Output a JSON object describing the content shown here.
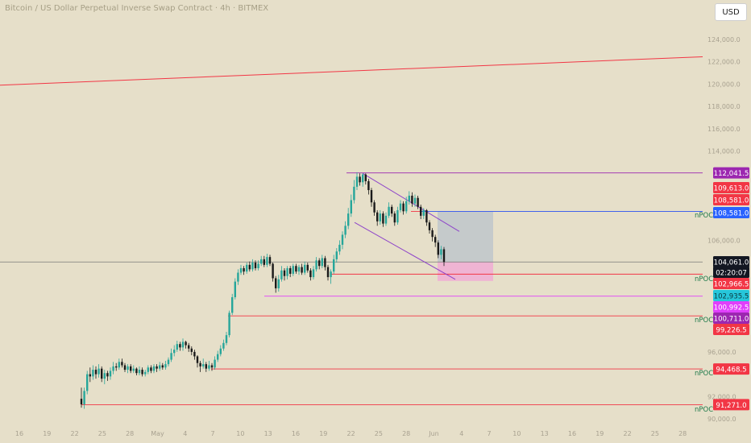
{
  "header": {
    "title": "Bitcoin / US Dollar Perpetual Inverse Swap Contract · 4h · BITMEX",
    "currency": "USD"
  },
  "chart_data": {
    "type": "candlestick",
    "title": "",
    "xlabel": "",
    "ylabel": "",
    "x_tick_labels": [
      "16",
      "19",
      "22",
      "25",
      "28",
      "May",
      "4",
      "7",
      "10",
      "13",
      "16",
      "19",
      "22",
      "25",
      "28",
      "Jun",
      "4",
      "7",
      "10",
      "13",
      "16",
      "19",
      "22",
      "25",
      "28"
    ],
    "y_tick_labels": [
      "124,000.0",
      "122,000.0",
      "120,000.0",
      "118,000.0",
      "116,000.0",
      "114,000.0",
      "106,000.0",
      "96,000.0",
      "92,000.0",
      "90,000.0"
    ],
    "ylim": [
      90000,
      124000
    ],
    "grid": false,
    "trend_line": {
      "start": 119900,
      "end": 122450
    },
    "levels": [
      {
        "label": "112,041.5",
        "value": 112041.5,
        "color": "#9c27b0",
        "tag": ""
      },
      {
        "label": "109,613.0",
        "value": 109613.0,
        "color": "#f23645",
        "tag": ""
      },
      {
        "label": "108,581.0",
        "value": 108581.0,
        "color": "#f23645",
        "tag": ""
      },
      {
        "label": "108,581.0",
        "value": 108581.0,
        "color": "#2962ff",
        "tag": "nPOC"
      },
      {
        "label": "104,061.0",
        "value": 104061.0,
        "color": "#131722",
        "tag": ""
      },
      {
        "label": "02:20:07",
        "value": 104061.0,
        "color": "#131722",
        "tag": ""
      },
      {
        "label": "102,966.5",
        "value": 102966.5,
        "color": "#f23645",
        "tag": "nPOC"
      },
      {
        "label": "102,935.5",
        "value": 102935.5,
        "color": "#26c6da",
        "tag": ""
      },
      {
        "label": "100,992.5",
        "value": 100992.5,
        "color": "#e040fb",
        "tag": ""
      },
      {
        "label": "100,711.0",
        "value": 100711.0,
        "color": "#9c27b0",
        "tag": ""
      },
      {
        "label": "99,226.5",
        "value": 99226.5,
        "color": "#f23645",
        "tag": "nPOC"
      },
      {
        "label": "94,468.5",
        "value": 94468.5,
        "color": "#f23645",
        "tag": "nPOC"
      },
      {
        "label": "91,271.0",
        "value": 91271.0,
        "color": "#f23645",
        "tag": "nPOC"
      }
    ],
    "position": {
      "entry": 104061.0,
      "target": 108581.0,
      "stop": 102935.5
    },
    "ohlc": [
      [
        91800,
        91300,
        92800,
        91000
      ],
      [
        91300,
        92500,
        92800,
        90900
      ],
      [
        92500,
        94000,
        94300,
        92200
      ],
      [
        94000,
        93800,
        94600,
        93300
      ],
      [
        93800,
        94400,
        94800,
        93500
      ],
      [
        94400,
        94000,
        94700,
        93600
      ],
      [
        94000,
        94500,
        94900,
        93700
      ],
      [
        94500,
        93600,
        94700,
        93300
      ],
      [
        93600,
        94100,
        94400,
        93100
      ],
      [
        94100,
        93800,
        94300,
        93400
      ],
      [
        93800,
        94300,
        94600,
        93500
      ],
      [
        94300,
        94700,
        95100,
        94000
      ],
      [
        94700,
        94600,
        95000,
        94300
      ],
      [
        94600,
        95100,
        95400,
        94400
      ],
      [
        95100,
        94800,
        95400,
        94600
      ],
      [
        94800,
        94400,
        95000,
        94200
      ],
      [
        94400,
        94700,
        94900,
        94100
      ],
      [
        94700,
        94300,
        94900,
        94100
      ],
      [
        94300,
        94500,
        94800,
        94100
      ],
      [
        94500,
        94100,
        94600,
        93900
      ],
      [
        94100,
        94400,
        94700,
        93900
      ],
      [
        94400,
        94000,
        94600,
        93800
      ],
      [
        94000,
        94200,
        94400,
        93800
      ],
      [
        94200,
        94600,
        94800,
        94000
      ],
      [
        94600,
        94300,
        94800,
        94100
      ],
      [
        94300,
        94700,
        94900,
        94100
      ],
      [
        94700,
        94500,
        94900,
        94200
      ],
      [
        94500,
        94800,
        95100,
        94300
      ],
      [
        94800,
        94600,
        95000,
        94400
      ],
      [
        94600,
        94900,
        95200,
        94400
      ],
      [
        94900,
        95300,
        95500,
        94700
      ],
      [
        95300,
        95900,
        96300,
        95100
      ],
      [
        95900,
        96200,
        96600,
        95600
      ],
      [
        96200,
        96700,
        97000,
        96000
      ],
      [
        96700,
        96400,
        96900,
        96100
      ],
      [
        96400,
        96900,
        97200,
        96100
      ],
      [
        96900,
        96600,
        97000,
        96300
      ],
      [
        96600,
        96300,
        96800,
        96000
      ],
      [
        96300,
        96000,
        96500,
        95700
      ],
      [
        96000,
        95600,
        96200,
        95300
      ],
      [
        95600,
        95000,
        95700,
        94600
      ],
      [
        95000,
        94700,
        95200,
        94200
      ],
      [
        94700,
        94900,
        95400,
        94500
      ],
      [
        94900,
        94500,
        95100,
        94200
      ],
      [
        94500,
        94800,
        95200,
        94300
      ],
      [
        94800,
        94600,
        95000,
        94300
      ],
      [
        94600,
        95300,
        95600,
        94400
      ],
      [
        95300,
        95800,
        96100,
        95100
      ],
      [
        95800,
        96300,
        96600,
        95600
      ],
      [
        96300,
        96800,
        97100,
        96100
      ],
      [
        96800,
        97500,
        97800,
        96600
      ],
      [
        97500,
        99500,
        99700,
        97300
      ],
      [
        99500,
        100900,
        101200,
        99300
      ],
      [
        100900,
        102300,
        102600,
        100700
      ],
      [
        102300,
        103100,
        103400,
        102000
      ],
      [
        103100,
        103500,
        103800,
        102900
      ],
      [
        103500,
        103200,
        103700,
        102900
      ],
      [
        103200,
        103800,
        104000,
        103000
      ],
      [
        103800,
        103400,
        104100,
        103200
      ],
      [
        103400,
        104000,
        104300,
        103200
      ],
      [
        104000,
        103500,
        104200,
        103300
      ],
      [
        103500,
        103900,
        104200,
        103300
      ],
      [
        103900,
        104300,
        104600,
        103700
      ],
      [
        104300,
        103800,
        104600,
        103600
      ],
      [
        103800,
        104500,
        104800,
        103600
      ],
      [
        104500,
        103900,
        104700,
        103700
      ],
      [
        103900,
        102600,
        104000,
        102300
      ],
      [
        102600,
        101700,
        102800,
        101300
      ],
      [
        101700,
        102500,
        102900,
        101400
      ],
      [
        102500,
        103300,
        103700,
        102300
      ],
      [
        103300,
        102800,
        103500,
        102400
      ],
      [
        102800,
        103500,
        103700,
        102500
      ],
      [
        103500,
        103000,
        103700,
        102700
      ],
      [
        103000,
        103700,
        103900,
        102800
      ],
      [
        103700,
        103200,
        103900,
        103000
      ],
      [
        103200,
        103600,
        103800,
        102900
      ],
      [
        103600,
        103100,
        103900,
        102900
      ],
      [
        103100,
        103800,
        104100,
        102900
      ],
      [
        103800,
        103300,
        104000,
        103100
      ],
      [
        103300,
        102700,
        103500,
        102400
      ],
      [
        102700,
        103400,
        103700,
        102500
      ],
      [
        103400,
        104200,
        104500,
        103200
      ],
      [
        104200,
        103700,
        104400,
        103400
      ],
      [
        103700,
        104400,
        104700,
        103500
      ],
      [
        104400,
        103600,
        104600,
        103300
      ],
      [
        103600,
        102700,
        103800,
        102400
      ],
      [
        102700,
        103200,
        103400,
        102100
      ],
      [
        103200,
        104300,
        104700,
        103000
      ],
      [
        104300,
        105000,
        105300,
        104000
      ],
      [
        105000,
        105600,
        106000,
        104700
      ],
      [
        105600,
        106500,
        106800,
        105200
      ],
      [
        106500,
        107300,
        107700,
        106200
      ],
      [
        107300,
        108400,
        108900,
        107000
      ],
      [
        108400,
        109600,
        110100,
        108100
      ],
      [
        109600,
        110800,
        111400,
        109300
      ],
      [
        110800,
        111700,
        112100,
        110500
      ],
      [
        111700,
        111200,
        112000,
        110900
      ],
      [
        111200,
        111900,
        112000,
        110800
      ],
      [
        111900,
        111300,
        112000,
        111000
      ],
      [
        111300,
        110500,
        111500,
        110100
      ],
      [
        110500,
        109400,
        110700,
        109000
      ],
      [
        109400,
        108500,
        109600,
        108200
      ],
      [
        108500,
        107700,
        108700,
        107300
      ],
      [
        107700,
        108400,
        108700,
        107400
      ],
      [
        108400,
        107500,
        108600,
        107200
      ],
      [
        107500,
        108200,
        108500,
        107300
      ],
      [
        108200,
        109000,
        109400,
        108000
      ],
      [
        109000,
        108400,
        109200,
        108100
      ],
      [
        108400,
        107600,
        108600,
        107300
      ],
      [
        107600,
        108700,
        109000,
        107400
      ],
      [
        108700,
        109300,
        109600,
        108500
      ],
      [
        109300,
        108600,
        109500,
        108300
      ],
      [
        108600,
        109500,
        109900,
        108400
      ],
      [
        109500,
        110000,
        110400,
        109200
      ],
      [
        110000,
        109300,
        110300,
        109000
      ],
      [
        109300,
        109800,
        110100,
        109000
      ],
      [
        109800,
        109000,
        110000,
        108800
      ],
      [
        109000,
        108200,
        109200,
        107900
      ],
      [
        108200,
        108700,
        108900,
        107900
      ],
      [
        108700,
        107600,
        108800,
        107300
      ],
      [
        107600,
        106900,
        107800,
        106600
      ],
      [
        106900,
        106300,
        107100,
        105900
      ],
      [
        106300,
        105800,
        106500,
        105400
      ],
      [
        105800,
        104700,
        106000,
        104400
      ],
      [
        104700,
        105200,
        105500,
        104300
      ],
      [
        105200,
        104061,
        105400,
        103700
      ]
    ]
  }
}
